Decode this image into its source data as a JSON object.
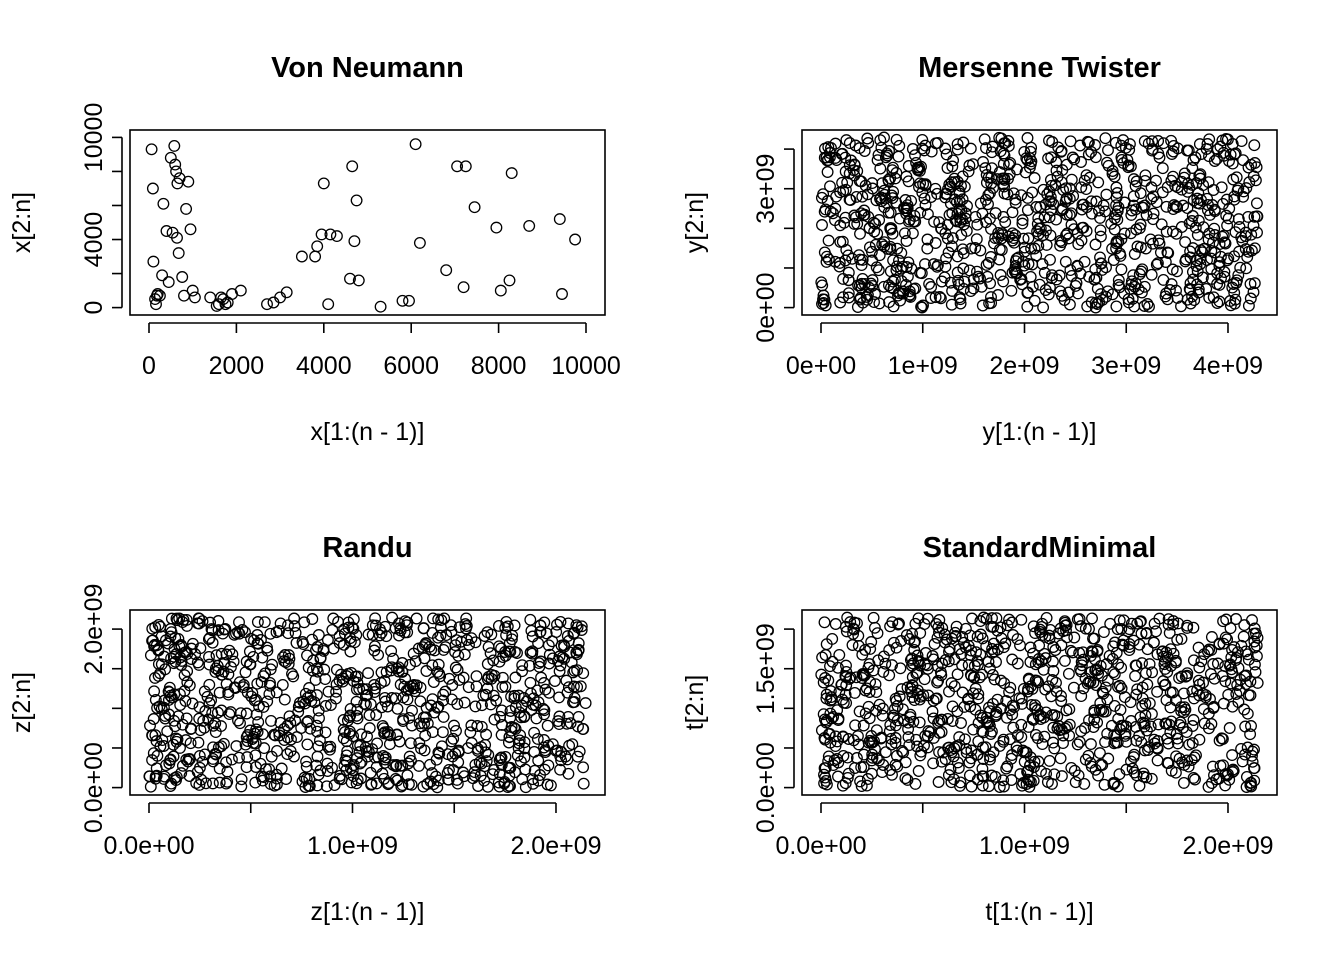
{
  "chart_data": [
    {
      "type": "scatter",
      "title": "Von Neumann",
      "xlabel": "x[1:(n - 1)]",
      "ylabel": "x[2:n]",
      "xlim": [
        0,
        10000
      ],
      "ylim": [
        0,
        10000
      ],
      "xticks": [
        0,
        2000,
        4000,
        6000,
        8000,
        10000
      ],
      "xtick_labels": [
        "0",
        "2000",
        "4000",
        "6000",
        "8000",
        "10000"
      ],
      "yticks": [
        0,
        4000,
        10000
      ],
      "ytick_labels": [
        "0",
        "4000",
        "10000"
      ],
      "y_minor_ticks": [
        2000,
        6000,
        8000
      ],
      "random_fill": false,
      "x": [
        60,
        90,
        100,
        140,
        160,
        180,
        200,
        250,
        300,
        330,
        400,
        450,
        500,
        540,
        580,
        600,
        620,
        640,
        650,
        680,
        700,
        760,
        800,
        850,
        900,
        950,
        1000,
        1050,
        1400,
        1550,
        1600,
        1650,
        1700,
        1750,
        1800,
        1900,
        2100,
        2700,
        2850,
        3000,
        3150,
        3500,
        3800,
        3850,
        3950,
        4000,
        4100,
        4150,
        4300,
        4600,
        4650,
        4700,
        4750,
        4800,
        5300,
        5800,
        5950,
        6100,
        6200,
        6800,
        7050,
        7200,
        7250,
        7450,
        7950,
        8050,
        8250,
        8300,
        8700,
        9400,
        9450,
        9750
      ],
      "y": [
        9300,
        7000,
        2700,
        500,
        200,
        700,
        800,
        700,
        1900,
        6100,
        4500,
        1500,
        8800,
        4400,
        9500,
        8400,
        8000,
        4100,
        7300,
        3200,
        7600,
        1800,
        700,
        5800,
        7400,
        4600,
        1000,
        600,
        600,
        100,
        200,
        600,
        500,
        200,
        300,
        800,
        1000,
        200,
        300,
        600,
        900,
        3000,
        3000,
        3600,
        4300,
        7300,
        200,
        4300,
        4200,
        1700,
        8300,
        3900,
        6300,
        1600,
        50,
        400,
        400,
        9600,
        3800,
        2200,
        8300,
        1200,
        8300,
        5900,
        4700,
        1000,
        1600,
        7900,
        4800,
        5200,
        800,
        4000
      ]
    },
    {
      "type": "scatter",
      "title": "Mersenne Twister",
      "xlabel": "y[1:(n - 1)]",
      "ylabel": "y[2:n]",
      "xlim": [
        0,
        4294967295
      ],
      "ylim": [
        0,
        4294967295
      ],
      "xticks": [
        0,
        1000000000,
        2000000000,
        3000000000,
        4000000000
      ],
      "xtick_labels": [
        "0e+00",
        "1e+09",
        "2e+09",
        "3e+09",
        "4e+09"
      ],
      "yticks": [
        0,
        3000000000
      ],
      "ytick_labels": [
        "0e+00",
        "3e+09"
      ],
      "y_minor_ticks": [
        1000000000,
        2000000000,
        4000000000
      ],
      "random_fill": true,
      "n": 1000,
      "seed": 11
    },
    {
      "type": "scatter",
      "title": "Randu",
      "xlabel": "z[1:(n - 1)]",
      "ylabel": "z[2:n]",
      "xlim": [
        0,
        2147483647
      ],
      "ylim": [
        0,
        2147483647
      ],
      "xticks": [
        0,
        1000000000,
        2000000000
      ],
      "xtick_labels": [
        "0.0e+00",
        "1.0e+09",
        "2.0e+09"
      ],
      "x_minor_ticks": [
        500000000,
        1500000000
      ],
      "yticks": [
        0,
        1000000000,
        2000000000
      ],
      "ytick_labels": [
        "0.0e+00",
        "",
        "2.0e+09"
      ],
      "y_minor_ticks": [
        500000000,
        1500000000
      ],
      "random_fill": true,
      "n": 1000,
      "seed": 23
    },
    {
      "type": "scatter",
      "title": "StandardMinimal",
      "xlabel": "t[1:(n - 1)]",
      "ylabel": "t[2:n]",
      "xlim": [
        0,
        2147483647
      ],
      "ylim": [
        0,
        2147483647
      ],
      "xticks": [
        0,
        1000000000,
        2000000000
      ],
      "xtick_labels": [
        "0.0e+00",
        "1.0e+09",
        "2.0e+09"
      ],
      "x_minor_ticks": [
        500000000,
        1500000000
      ],
      "yticks": [
        0,
        1500000000
      ],
      "ytick_labels": [
        "0.0e+00",
        "1.5e+09"
      ],
      "y_minor_ticks": [
        500000000,
        1000000000,
        2000000000
      ],
      "random_fill": true,
      "n": 1000,
      "seed": 37
    }
  ]
}
